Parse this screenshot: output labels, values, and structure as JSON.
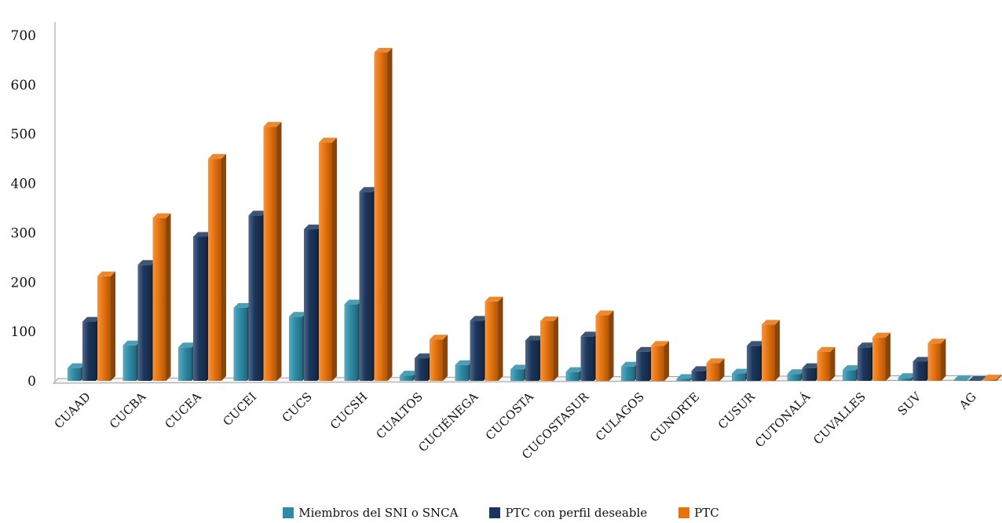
{
  "chart_data": {
    "type": "bar",
    "categories": [
      "CUAAD",
      "CUCBA",
      "CUCEA",
      "CUCEI",
      "CUCS",
      "CUCSH",
      "CUALTOS",
      "CUCIÉNEGA",
      "CUCOSTA",
      "CUCOSTASUR",
      "CULAGOS",
      "CUNORTE",
      "CUSUR",
      "CUTONALÁ",
      "CUVALLES",
      "SUV",
      "AG"
    ],
    "series": [
      {
        "name": "Miembros del SNI o SNCA",
        "color": "#2e8ca8",
        "values": [
          26,
          72,
          68,
          148,
          130,
          155,
          11,
          32,
          23,
          18,
          29,
          4,
          15,
          14,
          22,
          6,
          1
        ]
      },
      {
        "name": "PTC con perfil deseable",
        "color": "#1b365d",
        "values": [
          120,
          235,
          292,
          335,
          307,
          383,
          46,
          122,
          82,
          90,
          59,
          20,
          71,
          26,
          68,
          39,
          0
        ]
      },
      {
        "name": "PTC",
        "color": "#e8730c",
        "values": [
          212,
          330,
          450,
          515,
          483,
          665,
          84,
          161,
          121,
          133,
          71,
          36,
          114,
          59,
          88,
          76,
          3
        ]
      }
    ],
    "ylim": [
      0,
      700
    ],
    "yticks": [
      0,
      100,
      200,
      300,
      400,
      500,
      600,
      700
    ],
    "grid": false,
    "legend_position": "bottom"
  },
  "icons": {
    "legend_swatch": "square"
  }
}
